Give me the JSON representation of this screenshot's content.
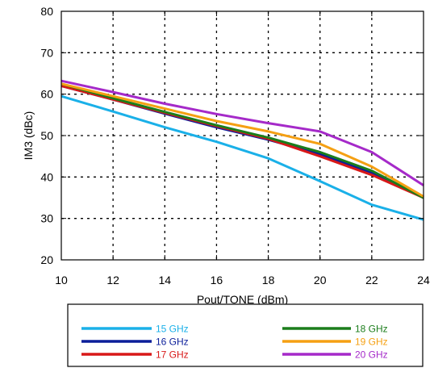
{
  "chart_data": {
    "type": "line",
    "xlabel": "Pout/TONE (dBm)",
    "ylabel": "IM3 (dBc)",
    "xlim": [
      10,
      24
    ],
    "ylim": [
      20,
      80
    ],
    "xticks": [
      10,
      12,
      14,
      16,
      18,
      20,
      22,
      24
    ],
    "yticks": [
      20,
      30,
      40,
      50,
      60,
      70,
      80
    ],
    "grid": true,
    "legend_position": "bottom",
    "x": [
      10,
      12,
      14,
      16,
      18,
      20,
      22,
      24
    ],
    "series": [
      {
        "name": "15 GHz",
        "color": "#1ab0e8",
        "values": [
          59.5,
          55.8,
          52.0,
          48.5,
          44.5,
          39.0,
          33.3,
          29.7
        ]
      },
      {
        "name": "16 GHz",
        "color": "#0b1e9a",
        "values": [
          62.0,
          58.7,
          55.3,
          52.0,
          49.0,
          45.5,
          41.0,
          35.0
        ]
      },
      {
        "name": "17 GHz",
        "color": "#d81818",
        "values": [
          62.0,
          58.7,
          55.5,
          52.3,
          49.2,
          45.0,
          40.5,
          35.0
        ]
      },
      {
        "name": "18 GHz",
        "color": "#1b7d1b",
        "values": [
          62.5,
          59.0,
          55.7,
          52.5,
          49.5,
          46.0,
          41.5,
          35.0
        ]
      },
      {
        "name": "19 GHz",
        "color": "#f5a013",
        "values": [
          62.5,
          59.5,
          56.5,
          53.5,
          51.0,
          48.0,
          42.5,
          35.3
        ]
      },
      {
        "name": "20 GHz",
        "color": "#a52ac9",
        "values": [
          63.2,
          60.5,
          57.7,
          55.2,
          53.0,
          51.0,
          46.0,
          38.0
        ]
      }
    ]
  }
}
